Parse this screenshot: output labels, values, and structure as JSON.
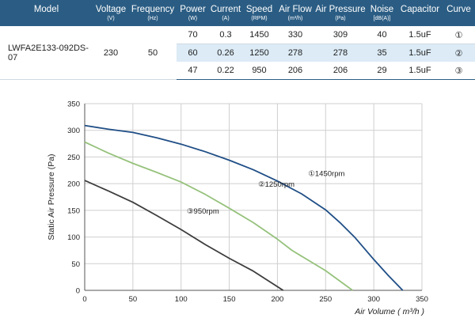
{
  "table": {
    "headers": [
      {
        "label": "Model",
        "unit": ""
      },
      {
        "label": "Voltage",
        "unit": "(V)"
      },
      {
        "label": "Frequency",
        "unit": "(Hz)"
      },
      {
        "label": "Power",
        "unit": "(W)"
      },
      {
        "label": "Current",
        "unit": "(A)"
      },
      {
        "label": "Speed",
        "unit": "(RPM)"
      },
      {
        "label": "Air Flow",
        "unit": "(m³/h)"
      },
      {
        "label": "Air Pressure",
        "unit": "(Pa)"
      },
      {
        "label": "Noise",
        "unit": "[dB(A)]"
      },
      {
        "label": "Capacitor",
        "unit": ""
      },
      {
        "label": "Curve",
        "unit": ""
      }
    ],
    "model": "LWFA2E133-092DS-07",
    "voltage": "230",
    "frequency": "50",
    "rows": [
      {
        "power": "70",
        "current": "0.3",
        "speed": "1450",
        "air_flow": "330",
        "air_pressure": "309",
        "noise": "40",
        "capacitor": "1.5uF",
        "curve": "①"
      },
      {
        "power": "60",
        "current": "0.26",
        "speed": "1250",
        "air_flow": "278",
        "air_pressure": "278",
        "noise": "35",
        "capacitor": "1.5uF",
        "curve": "②"
      },
      {
        "power": "47",
        "current": "0.22",
        "speed": "950",
        "air_flow": "206",
        "air_pressure": "206",
        "noise": "29",
        "capacitor": "1.5uF",
        "curve": "③"
      }
    ]
  },
  "chart_data": {
    "type": "line",
    "xlabel": "Air Volume ( m³/h )",
    "ylabel": "Static Air Pressure  (Pa)",
    "xlim": [
      0,
      350
    ],
    "ylim": [
      0,
      350
    ],
    "xticks": [
      0,
      50,
      100,
      150,
      200,
      250,
      300,
      350
    ],
    "yticks": [
      0,
      50,
      100,
      150,
      200,
      250,
      300,
      350
    ],
    "grid": true,
    "series": [
      {
        "name": "①1450rpm",
        "color": "#1f4e86",
        "x": [
          0,
          25,
          50,
          75,
          100,
          125,
          150,
          175,
          200,
          225,
          250,
          265,
          280,
          300,
          315,
          330
        ],
        "y": [
          309,
          302,
          296,
          286,
          274,
          260,
          244,
          226,
          205,
          181,
          151,
          127,
          100,
          58,
          28,
          0
        ]
      },
      {
        "name": "②1250rpm",
        "color": "#96c27c",
        "x": [
          0,
          25,
          50,
          75,
          100,
          125,
          150,
          175,
          200,
          215,
          225,
          250,
          278
        ],
        "y": [
          278,
          257,
          238,
          221,
          203,
          180,
          154,
          127,
          96,
          75,
          64,
          37,
          0
        ]
      },
      {
        "name": "③950rpm",
        "color": "#3d3d3d",
        "x": [
          0,
          25,
          50,
          75,
          100,
          125,
          150,
          175,
          206
        ],
        "y": [
          206,
          186,
          165,
          140,
          114,
          86,
          60,
          36,
          0
        ]
      }
    ]
  }
}
